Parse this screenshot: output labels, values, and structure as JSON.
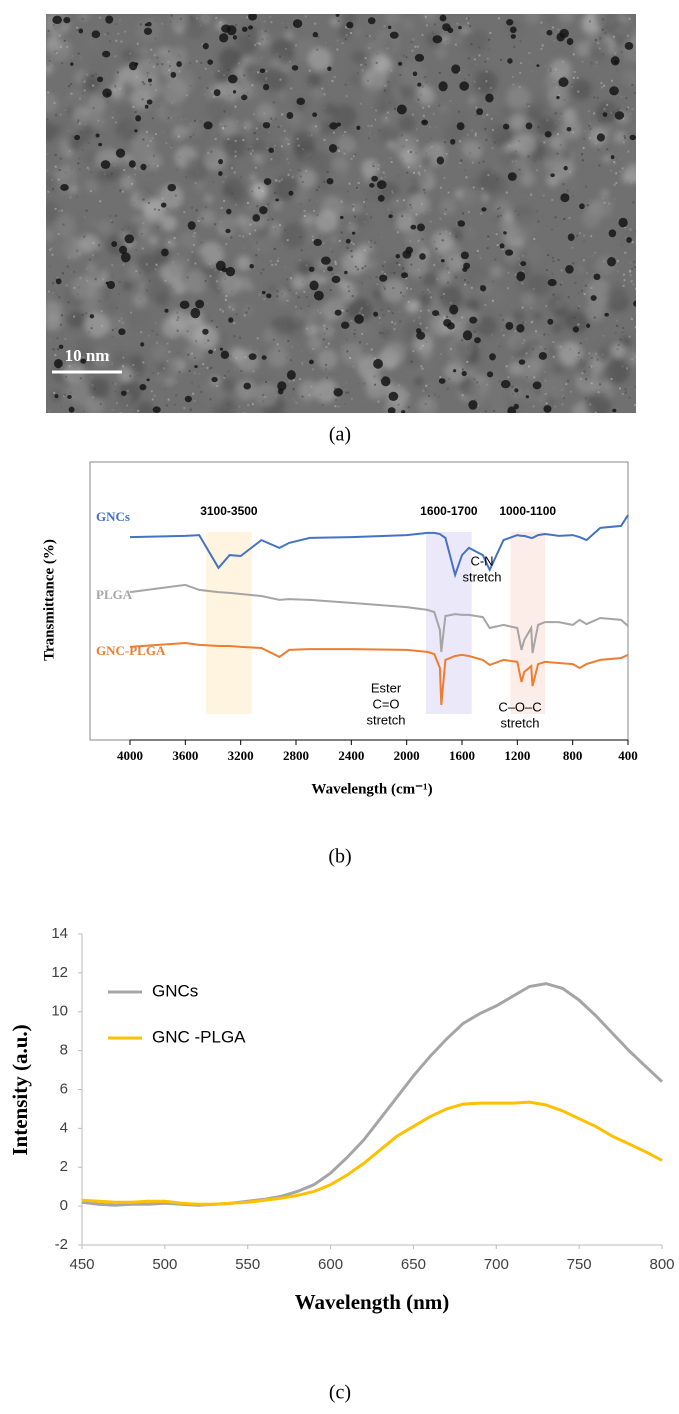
{
  "chart_data": [
    {
      "type": "image",
      "scale_bar": "10 nm",
      "caption": "(a)"
    },
    {
      "type": "spectrum",
      "caption": "(b)",
      "y_label": "Transmittance (%)",
      "x_label": "Wavelength (cm⁻¹)",
      "xlim": [
        4000,
        400
      ],
      "xticks": [
        4000,
        3600,
        3200,
        2800,
        2400,
        2000,
        1600,
        1200,
        800,
        400
      ],
      "ylim": [
        0,
        100
      ],
      "bands": [
        {
          "label": "3100-3500",
          "range": [
            3450,
            3120
          ],
          "color": "#fff3dc"
        },
        {
          "label": "1600-1700",
          "range": [
            1860,
            1530
          ],
          "color": "#e9e7f8"
        },
        {
          "label": "1000-1100",
          "range": [
            1250,
            1000
          ],
          "color": "#fdebe5"
        }
      ],
      "annotations": [
        [
          "C-N",
          "stretch"
        ],
        [
          "Ester",
          "C=O",
          "stretch"
        ],
        [
          "C–O–C",
          "stretch"
        ]
      ],
      "x": [
        4000,
        3600,
        3500,
        3360,
        3280,
        3200,
        3050,
        2920,
        2850,
        2700,
        2400,
        2000,
        1850,
        1800,
        1760,
        1750,
        1720,
        1650,
        1600,
        1550,
        1450,
        1400,
        1300,
        1200,
        1170,
        1150,
        1100,
        1090,
        1050,
        1000,
        900,
        800,
        750,
        700,
        600,
        450,
        400
      ],
      "series": [
        {
          "name": "GNCs",
          "color": "#4472c4",
          "values": [
            73.0,
            73.4,
            73.7,
            61.9,
            66.5,
            66.2,
            71.9,
            69.1,
            70.9,
            72.7,
            73.0,
            73.7,
            74.5,
            74.5,
            74.1,
            73.7,
            72.7,
            59.4,
            66.5,
            69.1,
            66.5,
            61.2,
            71.9,
            73.7,
            73.4,
            73.4,
            72.7,
            72.7,
            73.7,
            74.1,
            73.4,
            73.7,
            73.0,
            71.9,
            76.3,
            77.0,
            80.9
          ]
        },
        {
          "name": "PLGA",
          "color": "#a5a5a5",
          "values": [
            53.2,
            55.8,
            54.0,
            53.2,
            52.9,
            52.5,
            51.8,
            50.4,
            50.7,
            50.4,
            49.3,
            47.8,
            46.8,
            46.0,
            39.6,
            31.7,
            44.6,
            45.3,
            45.0,
            45.0,
            44.2,
            40.3,
            41.4,
            40.3,
            32.4,
            36.0,
            40.3,
            31.3,
            41.4,
            42.4,
            42.4,
            41.4,
            43.2,
            41.7,
            43.9,
            43.2,
            41.0
          ]
        },
        {
          "name": "GNC-PLGA",
          "color": "#ed7d31",
          "values": [
            33.5,
            34.9,
            34.2,
            33.8,
            33.8,
            33.5,
            33.1,
            29.9,
            32.4,
            32.7,
            32.7,
            32.4,
            31.7,
            30.9,
            25.9,
            12.6,
            28.8,
            30.2,
            30.6,
            30.2,
            28.8,
            27.0,
            28.8,
            28.1,
            20.9,
            24.5,
            26.6,
            19.4,
            27.3,
            28.1,
            27.7,
            27.3,
            25.9,
            27.3,
            28.8,
            29.5,
            30.6
          ]
        }
      ]
    },
    {
      "type": "line",
      "caption": "(c)",
      "y_label": "Intensity (a.u.)",
      "x_label": "Wavelength (nm)",
      "xlim": [
        450,
        800
      ],
      "xticks": [
        450,
        500,
        550,
        600,
        650,
        700,
        750,
        800
      ],
      "ylim": [
        -2,
        14
      ],
      "yticks": [
        -2,
        0,
        2,
        4,
        6,
        8,
        10,
        12,
        14
      ],
      "legend": "upper-left",
      "x": [
        450,
        460,
        470,
        480,
        490,
        500,
        510,
        520,
        530,
        540,
        550,
        560,
        570,
        580,
        590,
        600,
        610,
        620,
        630,
        640,
        650,
        660,
        670,
        680,
        690,
        700,
        710,
        720,
        730,
        740,
        750,
        760,
        770,
        780,
        790,
        800
      ],
      "series": [
        {
          "name": "GNCs",
          "color": "#a5a5a5",
          "values": [
            0.2,
            0.1,
            0.05,
            0.1,
            0.1,
            0.15,
            0.1,
            0.05,
            0.1,
            0.15,
            0.25,
            0.35,
            0.5,
            0.75,
            1.1,
            1.7,
            2.5,
            3.4,
            4.5,
            5.6,
            6.7,
            7.7,
            8.6,
            9.4,
            9.9,
            10.3,
            10.8,
            11.3,
            11.45,
            11.2,
            10.6,
            9.8,
            8.9,
            8.0,
            7.2,
            6.4
          ]
        },
        {
          "name": "GNC -PLGA",
          "color": "#ffc000",
          "values": [
            0.3,
            0.25,
            0.2,
            0.2,
            0.25,
            0.25,
            0.15,
            0.1,
            0.1,
            0.15,
            0.2,
            0.3,
            0.4,
            0.55,
            0.75,
            1.1,
            1.6,
            2.2,
            2.9,
            3.6,
            4.1,
            4.6,
            5.0,
            5.25,
            5.3,
            5.3,
            5.3,
            5.35,
            5.2,
            4.9,
            4.5,
            4.1,
            3.6,
            3.2,
            2.8,
            2.35
          ]
        }
      ]
    }
  ]
}
